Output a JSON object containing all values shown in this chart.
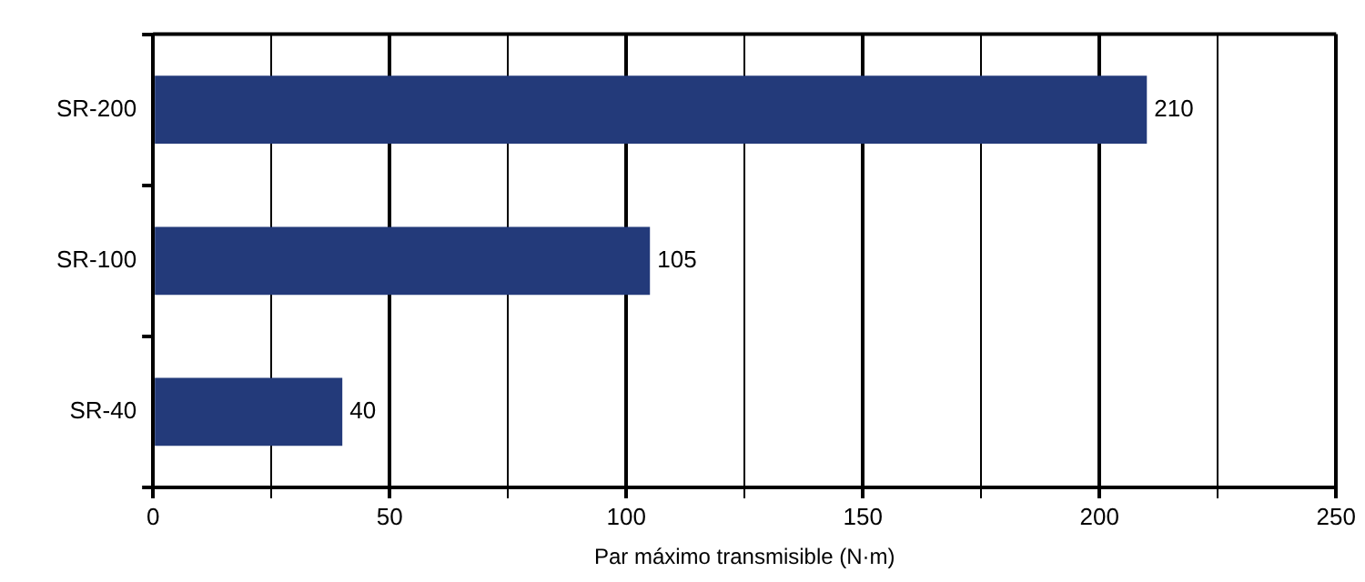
{
  "chart_data": {
    "type": "bar",
    "orientation": "horizontal",
    "categories": [
      "SR-200",
      "SR-100",
      "SR-40"
    ],
    "values": [
      210,
      105,
      40
    ],
    "color": "#233a7a",
    "xlabel": "Par máximo transmisible (N·m)",
    "xlim": [
      0,
      250
    ],
    "xticks": [
      0,
      {
        "value": 25,
        "label": null
      },
      50,
      {
        "value": 75,
        "label": null
      },
      100,
      {
        "value": 125,
        "label": null
      },
      150,
      {
        "value": 175,
        "label": null
      },
      200,
      {
        "value": 225,
        "label": null
      },
      250
    ],
    "grid": "x",
    "data_labels": true
  }
}
